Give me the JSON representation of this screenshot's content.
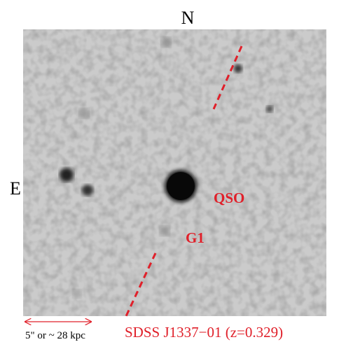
{
  "compass": {
    "north": "N",
    "east": "E"
  },
  "objects": {
    "qso": "QSO",
    "galaxy": "G1"
  },
  "scale_bar": "5\" or ~ 28 kpc",
  "caption": "SDSS J1337−01 (z=0.329)"
}
